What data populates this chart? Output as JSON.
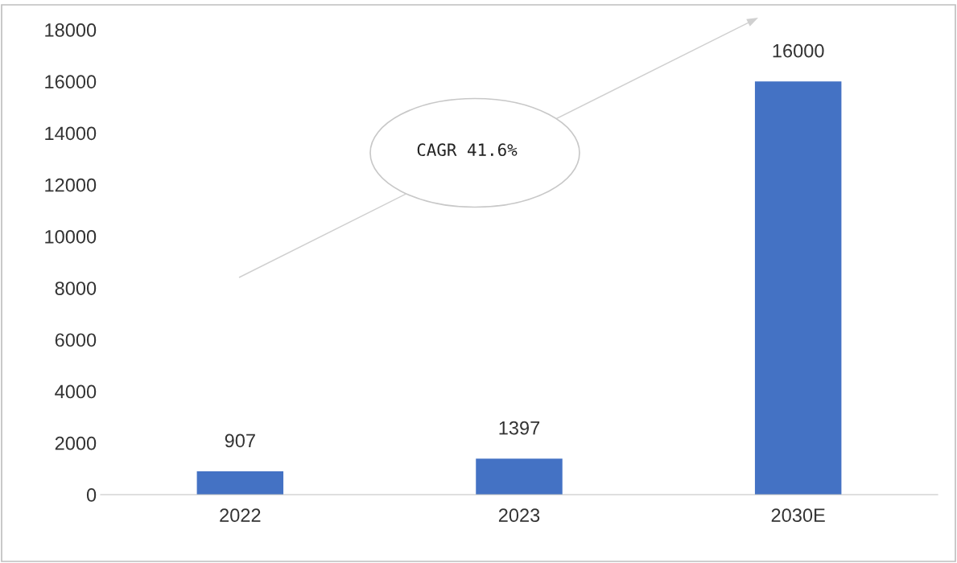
{
  "chart_data": {
    "type": "bar",
    "categories": [
      "2022",
      "2023",
      "2030E"
    ],
    "values": [
      907,
      1397,
      16000
    ],
    "color": "#4472c4",
    "ylim": [
      0,
      18000
    ],
    "yticks": [
      0,
      2000,
      4000,
      6000,
      8000,
      10000,
      12000,
      14000,
      16000,
      18000
    ],
    "grid": false,
    "data_labels": true,
    "legend": false,
    "annotations": [
      "CAGR 41.6%"
    ]
  }
}
